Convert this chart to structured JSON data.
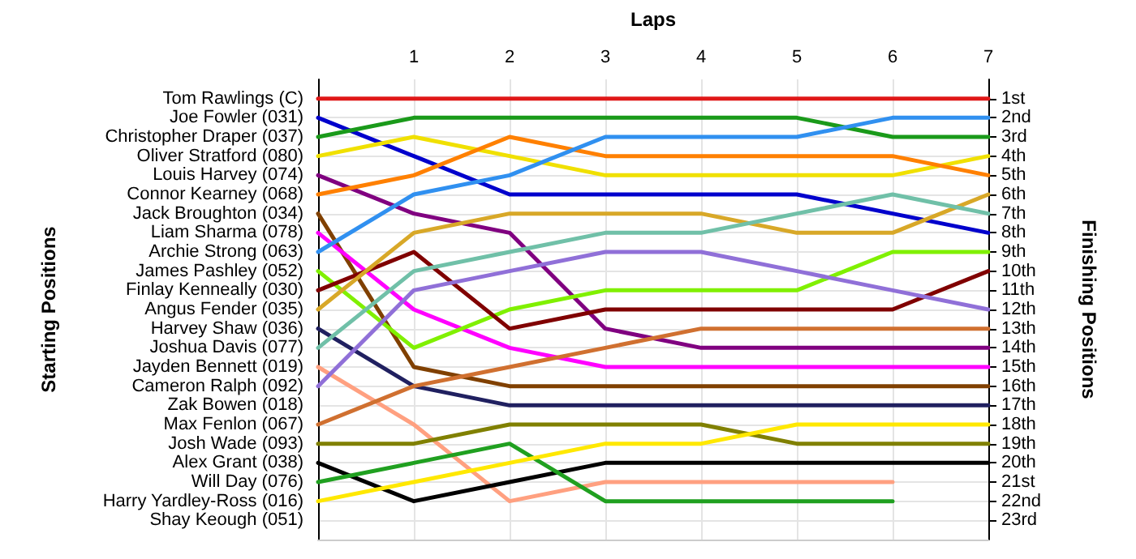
{
  "chart_data": {
    "type": "line",
    "xlabel": "Laps",
    "y2label": "Finishing Positions",
    "annotations": [
      "Starting Positions",
      "Tom Rawlings (C)",
      "Joe Fowler (031)",
      "Christopher Draper (037)",
      "Oliver Stratford (080)",
      "Louis Harvey (074)",
      "Connor Kearney (068)",
      "Jack Broughton (034)",
      "Liam Sharma (078)",
      "Archie Strong (063)",
      "James Pashley (052)",
      "Finlay Kenneally (030)",
      "Angus Fender (035)",
      "Harvey Shaw (036)",
      "Joshua Davis (077)",
      "Jayden Bennett (019)",
      "Cameron Ralph (092)",
      "Zak Bowen (018)",
      "Max Fenlon (067)",
      "Josh Wade (093)",
      "Alex Grant (038)",
      "Will Day (076)",
      "Harry Yardley-Ross (016)",
      "Shay Keough (051)"
    ],
    "x": [
      0,
      1,
      2,
      3,
      4,
      5,
      6,
      7
    ],
    "xlim": [
      0,
      7
    ],
    "xticks": [
      {
        "value": 0,
        "label": null
      },
      1,
      2,
      3,
      4,
      5,
      6,
      7
    ],
    "y2lim": [
      24,
      0
    ],
    "y2ticks": [
      {
        "value": 1,
        "label": "1st"
      },
      {
        "value": 2,
        "label": "2nd"
      },
      {
        "value": 3,
        "label": "3rd"
      },
      {
        "value": 4,
        "label": "4th"
      },
      {
        "value": 5,
        "label": "5th"
      },
      {
        "value": 6,
        "label": "6th"
      },
      {
        "value": 7,
        "label": "7th"
      },
      {
        "value": 8,
        "label": "8th"
      },
      {
        "value": 9,
        "label": "9th"
      },
      {
        "value": 10,
        "label": "10th"
      },
      {
        "value": 11,
        "label": "11th"
      },
      {
        "value": 12,
        "label": "12th"
      },
      {
        "value": 13,
        "label": "13th"
      },
      {
        "value": 14,
        "label": "14th"
      },
      {
        "value": 15,
        "label": "15th"
      },
      {
        "value": 16,
        "label": "16th"
      },
      {
        "value": 17,
        "label": "17th"
      },
      {
        "value": 18,
        "label": "18th"
      },
      {
        "value": 19,
        "label": "19th"
      },
      {
        "value": 20,
        "label": "20th"
      },
      {
        "value": 21,
        "label": "21st"
      },
      {
        "value": 22,
        "label": "22nd"
      },
      {
        "value": 23,
        "label": "23rd"
      }
    ],
    "grid": true,
    "marker": "none",
    "line_style": "solid",
    "series": [
      {
        "axis": "y2",
        "color": "#e01818",
        "values": [
          1,
          1,
          1,
          1,
          1,
          1,
          1,
          1
        ]
      },
      {
        "axis": "y2",
        "color": "#0000cc",
        "values": [
          2,
          4,
          6,
          6,
          6,
          6,
          7,
          8
        ]
      },
      {
        "axis": "y2",
        "color": "#1a9a1a",
        "values": [
          3,
          2,
          2,
          2,
          2,
          2,
          3,
          3
        ]
      },
      {
        "axis": "y2",
        "color": "#f0e000",
        "values": [
          4,
          3,
          4,
          5,
          5,
          5,
          5,
          4
        ]
      },
      {
        "axis": "y2",
        "color": "#800080",
        "values": [
          5,
          7,
          8,
          13,
          14,
          14,
          14,
          14
        ]
      },
      {
        "axis": "y2",
        "color": "#ff8000",
        "values": [
          6,
          5,
          3,
          4,
          4,
          4,
          4,
          5
        ]
      },
      {
        "axis": "y2",
        "color": "#804000",
        "values": [
          7,
          15,
          16,
          16,
          16,
          16,
          16,
          16
        ]
      },
      {
        "axis": "y2",
        "color": "#ff00ff",
        "values": [
          8,
          12,
          14,
          15,
          15,
          15,
          15,
          15
        ]
      },
      {
        "axis": "y2",
        "color": "#3090f0",
        "values": [
          9,
          6,
          5,
          3,
          3,
          3,
          2,
          2
        ]
      },
      {
        "axis": "y2",
        "color": "#80f000",
        "values": [
          10,
          14,
          12,
          11,
          11,
          11,
          9,
          9
        ]
      },
      {
        "axis": "y2",
        "color": "#800000",
        "values": [
          11,
          9,
          13,
          12,
          12,
          12,
          12,
          10
        ]
      },
      {
        "axis": "y2",
        "color": "#d8a828",
        "values": [
          12,
          8,
          7,
          7,
          7,
          8,
          8,
          6
        ]
      },
      {
        "axis": "y2",
        "color": "#202060",
        "values": [
          13,
          16,
          17,
          17,
          17,
          17,
          17,
          17
        ]
      },
      {
        "axis": "y2",
        "color": "#70c0a8",
        "values": [
          14,
          10,
          9,
          8,
          8,
          7,
          6,
          7
        ]
      },
      {
        "axis": "y2",
        "color": "#ffa080",
        "values": [
          15,
          18,
          22,
          21,
          21,
          21,
          21,
          null
        ]
      },
      {
        "axis": "y2",
        "color": "#9070d8",
        "values": [
          16,
          11,
          10,
          9,
          9,
          10,
          11,
          12
        ]
      },
      {
        "axis": "y2",
        "color": "#d07030",
        "values": [
          18,
          16,
          15,
          14,
          13,
          13,
          13,
          13
        ]
      },
      {
        "axis": "y2",
        "color": "#808000",
        "values": [
          19,
          19,
          18,
          18,
          18,
          19,
          19,
          19
        ]
      },
      {
        "axis": "y2",
        "color": "#000000",
        "values": [
          20,
          22,
          21,
          20,
          20,
          20,
          20,
          20
        ]
      },
      {
        "axis": "y2",
        "color": "#20a020",
        "values": [
          21,
          20,
          19,
          22,
          22,
          22,
          22,
          null
        ]
      },
      {
        "axis": "y2",
        "color": "#ffe800",
        "values": [
          22,
          21,
          20,
          19,
          19,
          18,
          18,
          18
        ]
      }
    ]
  }
}
